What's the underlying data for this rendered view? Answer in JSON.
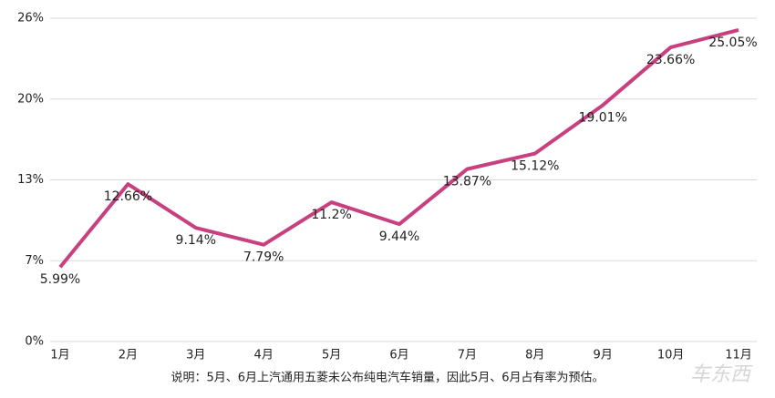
{
  "chart_data": {
    "type": "line",
    "categories": [
      "1月",
      "2月",
      "3月",
      "4月",
      "5月",
      "6月",
      "7月",
      "8月",
      "9月",
      "10月",
      "11月"
    ],
    "series": [
      {
        "color": "#c8407f",
        "values": [
          5.99,
          12.66,
          9.14,
          7.79,
          11.2,
          9.44,
          13.87,
          15.12,
          19.01,
          23.66,
          25.05
        ],
        "value_labels": [
          "5.99%",
          "12.66%",
          "9.14%",
          "7.79%",
          "11.2%",
          "9.44%",
          "13.87%",
          "15.12%",
          "19.01%",
          "23.66%",
          "25.05%"
        ]
      }
    ],
    "ylim": [
      0,
      26
    ],
    "yticks": [
      {
        "value": 0,
        "label": "0%"
      },
      {
        "value": 6.5,
        "label": "7%"
      },
      {
        "value": 13,
        "label": "13%"
      },
      {
        "value": 19.5,
        "label": "20%"
      },
      {
        "value": 26,
        "label": "26%"
      }
    ],
    "grid": true,
    "note": "说明：5月、6月上汽通用五菱未公布纯电汽车销量，因此5月、6月占有率为预估。",
    "watermark": "车东西"
  }
}
